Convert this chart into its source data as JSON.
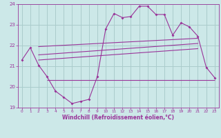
{
  "background_color": "#cce8e8",
  "grid_color": "#aacccc",
  "line_color": "#993399",
  "xlabel": "Windchill (Refroidissement éolien,°C)",
  "xlim": [
    -0.5,
    23.5
  ],
  "ylim": [
    19,
    24
  ],
  "yticks": [
    19,
    20,
    21,
    22,
    23,
    24
  ],
  "xticks": [
    0,
    1,
    2,
    3,
    4,
    5,
    6,
    7,
    8,
    9,
    10,
    11,
    12,
    13,
    14,
    15,
    16,
    17,
    18,
    19,
    20,
    21,
    22,
    23
  ],
  "main_x": [
    0,
    1,
    2,
    3,
    4,
    5,
    6,
    7,
    8,
    9,
    10,
    11,
    12,
    13,
    14,
    15,
    16,
    17,
    18,
    19,
    20,
    21,
    22,
    23
  ],
  "main_y": [
    21.3,
    21.9,
    21.05,
    20.5,
    19.8,
    19.5,
    19.2,
    19.3,
    19.4,
    20.5,
    22.8,
    23.55,
    23.35,
    23.4,
    23.9,
    23.9,
    23.5,
    23.5,
    22.5,
    23.1,
    22.9,
    22.45,
    20.95,
    20.45
  ],
  "upper_line_x": [
    2,
    21
  ],
  "upper_line_y": [
    21.95,
    22.35
  ],
  "middle_line_x": [
    2,
    21
  ],
  "middle_line_y": [
    21.55,
    22.1
  ],
  "lower_line_x": [
    2,
    21
  ],
  "lower_line_y": [
    21.3,
    21.85
  ],
  "hline_y": 20.35,
  "hline_x_start": 3,
  "hline_x_end": 23
}
